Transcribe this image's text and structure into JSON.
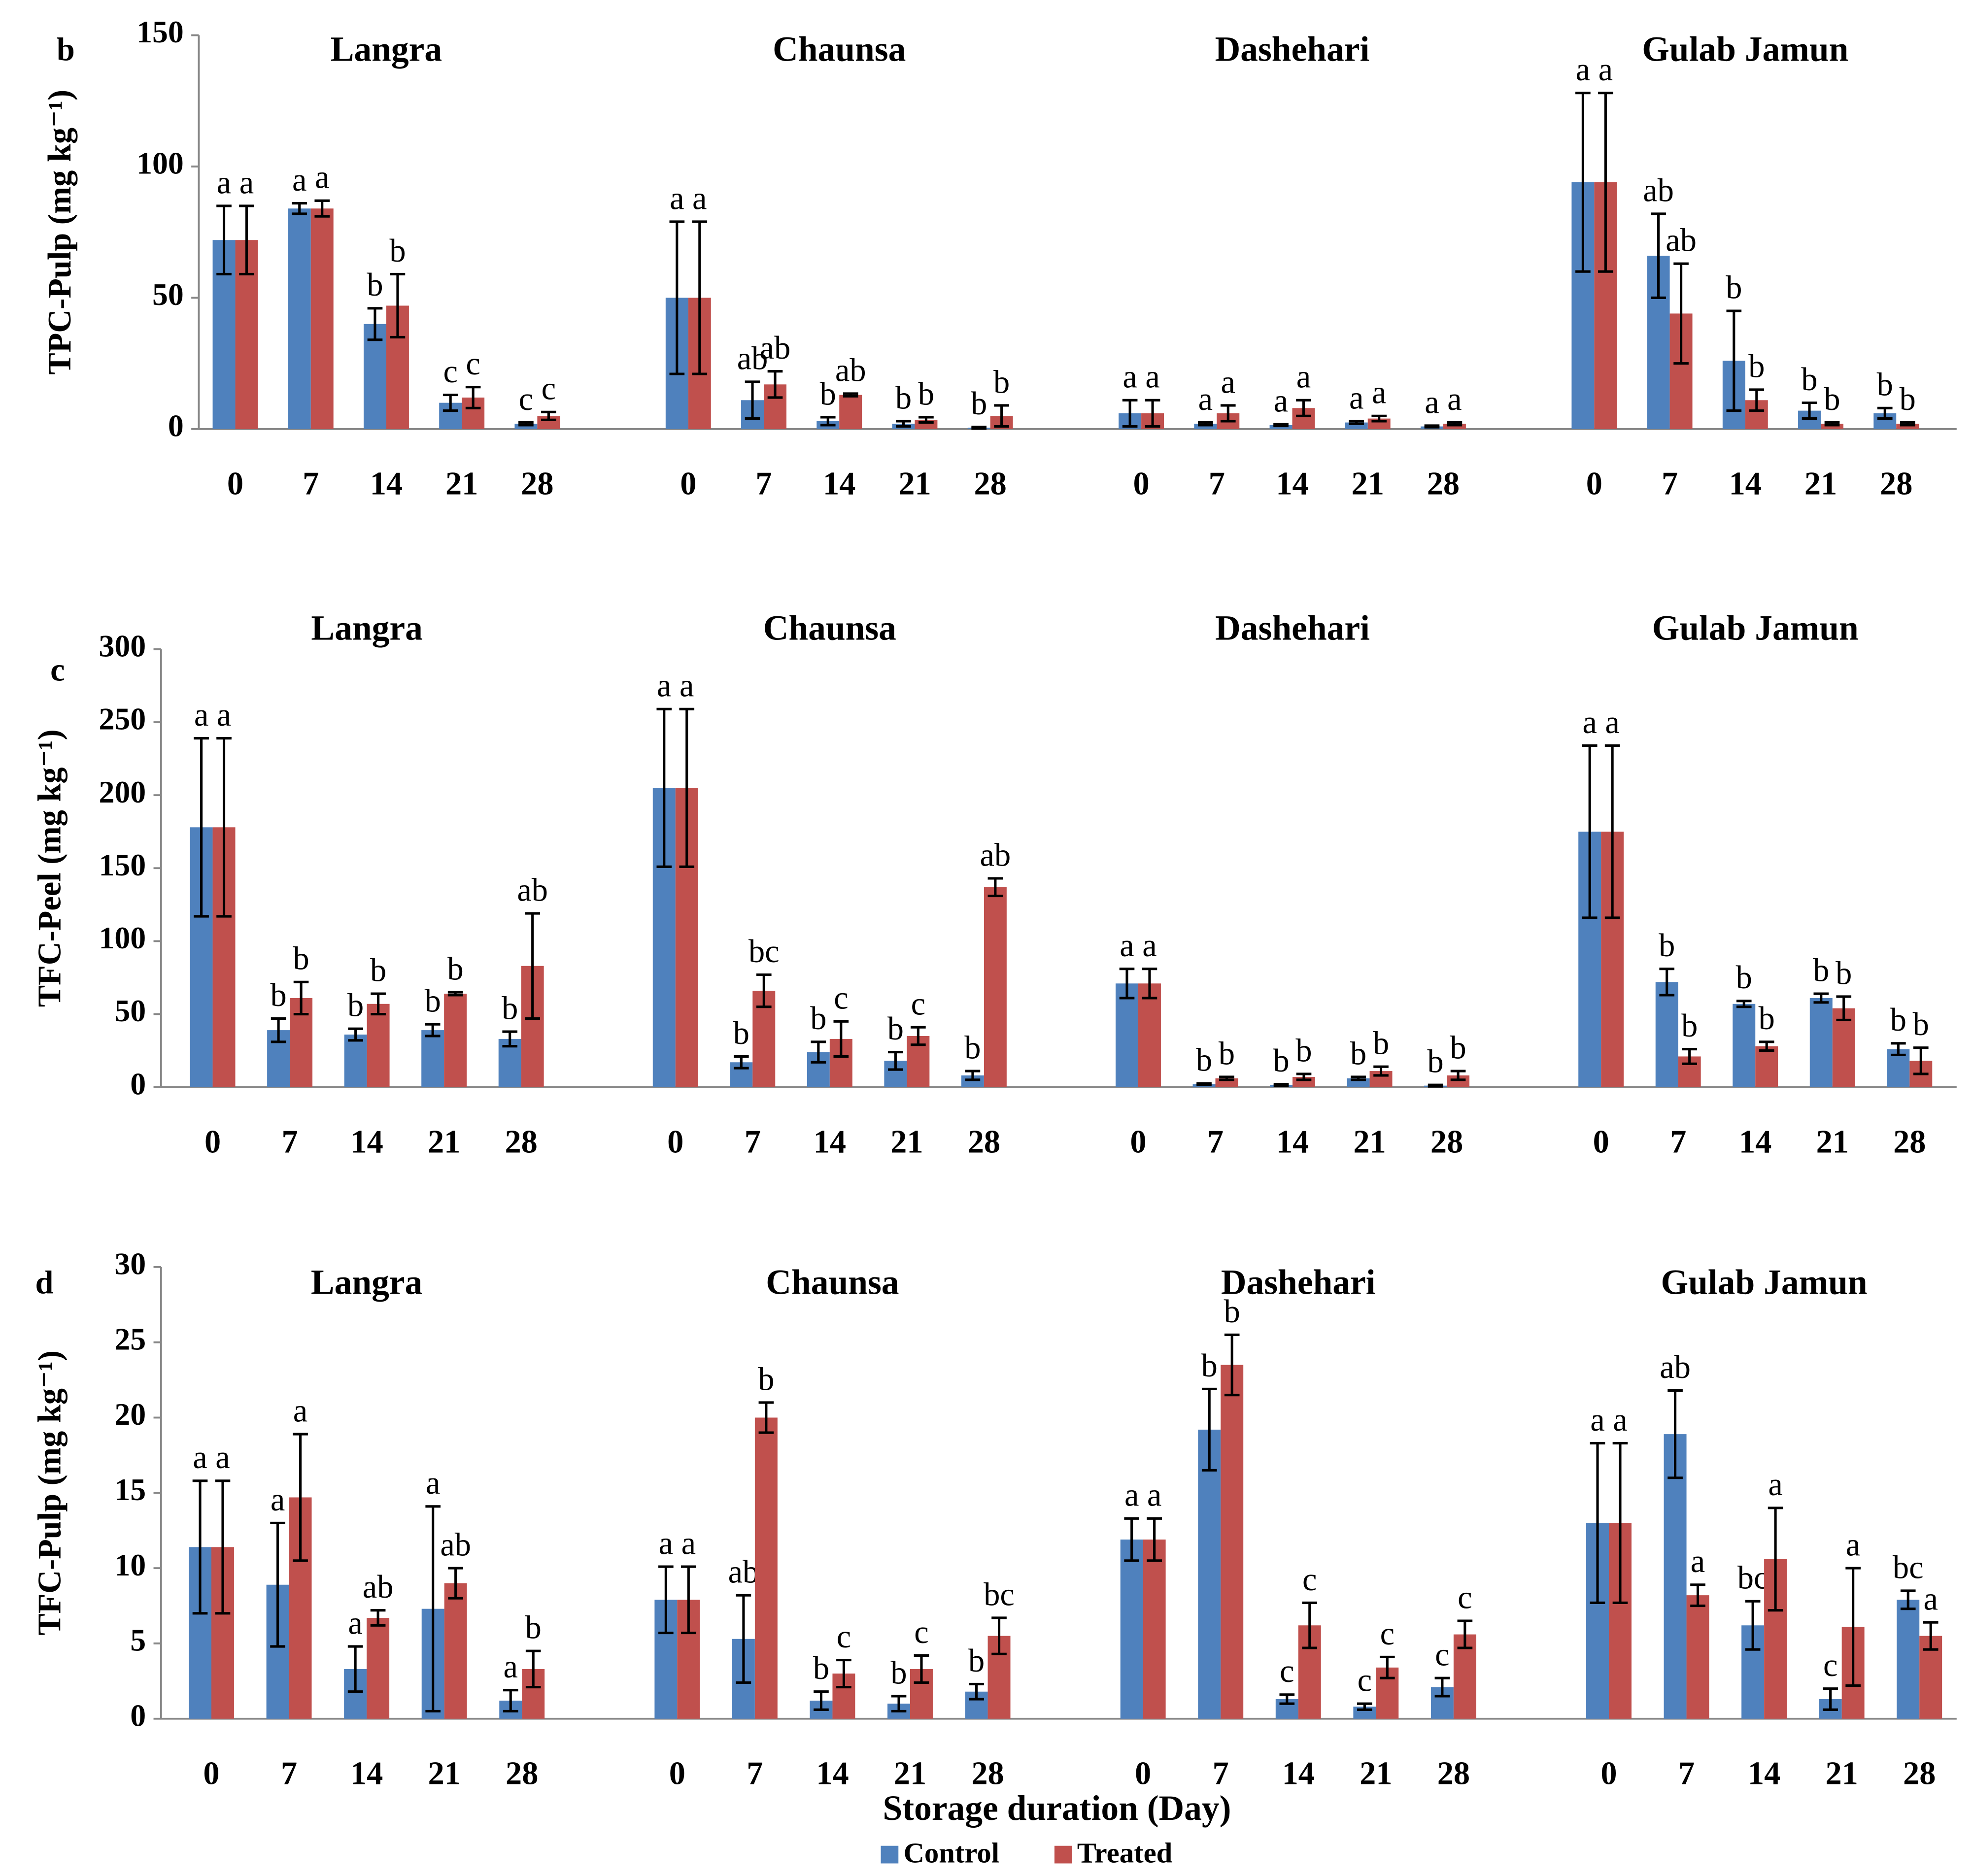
{
  "chart_data": [
    {
      "type": "bar",
      "panel": "b",
      "y_label": "TPC-Pulp (mg kg⁻¹)",
      "groups": [
        "Langra",
        "Chaunsa",
        "Dashehari",
        "Gulab Jamun"
      ],
      "categories": [
        "0",
        "7",
        "14",
        "21",
        "28",
        "0",
        "7",
        "14",
        "21",
        "28",
        "0",
        "7",
        "14",
        "21",
        "28",
        "0",
        "7",
        "14",
        "21",
        "28"
      ],
      "ylim": [
        0,
        150
      ],
      "yticks": [
        0,
        50,
        100,
        150
      ],
      "series": [
        {
          "name": "Control",
          "color": "#4f81bd",
          "values": [
            72,
            84,
            40,
            10,
            2,
            50,
            11,
            3,
            2,
            0.5,
            6,
            2,
            1.5,
            2.5,
            1,
            94,
            66,
            26,
            7,
            6
          ],
          "errors": [
            13,
            2,
            6,
            3,
            0.5,
            29,
            7,
            1.5,
            1,
            0.3,
            5,
            0.5,
            0.3,
            0.5,
            0.3,
            34,
            16,
            19,
            3,
            2
          ],
          "letters": [
            "a",
            "a",
            "b",
            "c",
            "c",
            "a",
            "ab",
            "b",
            "b",
            "b",
            "a",
            "a",
            "a",
            "a",
            "a",
            "a",
            "ab",
            "b",
            "b",
            "b"
          ]
        },
        {
          "name": "Treated",
          "color": "#c0504d",
          "values": [
            72,
            84,
            47,
            12,
            5,
            50,
            17,
            13,
            3.5,
            5,
            6,
            6,
            8,
            4,
            2,
            94,
            44,
            11,
            2,
            2
          ],
          "errors": [
            13,
            3,
            12,
            4,
            1.5,
            29,
            5,
            0.5,
            1,
            4,
            5,
            3,
            3,
            1,
            0.5,
            34,
            19,
            4,
            0.5,
            0.5
          ],
          "letters": [
            "a",
            "a",
            "b",
            "c",
            "c",
            "a",
            "ab",
            "ab",
            "b",
            "b",
            "a",
            "a",
            "a",
            "a",
            "a",
            "a",
            "ab",
            "b",
            "b",
            "b"
          ]
        }
      ]
    },
    {
      "type": "bar",
      "panel": "c",
      "y_label": "TFC-Peel (mg kg⁻¹)",
      "groups": [
        "Langra",
        "Chaunsa",
        "Dashehari",
        "Gulab Jamun"
      ],
      "categories": [
        "0",
        "7",
        "14",
        "21",
        "28",
        "0",
        "7",
        "14",
        "21",
        "28",
        "0",
        "7",
        "14",
        "21",
        "28",
        "0",
        "7",
        "14",
        "21",
        "28"
      ],
      "ylim": [
        0,
        300
      ],
      "yticks": [
        0,
        50,
        100,
        150,
        200,
        250,
        300
      ],
      "series": [
        {
          "name": "Control",
          "color": "#4f81bd",
          "values": [
            178,
            39,
            36,
            39,
            33,
            205,
            17,
            24,
            18,
            8,
            71,
            2,
            1.5,
            6,
            1,
            175,
            72,
            57,
            61,
            26
          ],
          "errors": [
            61,
            8,
            4,
            4,
            5,
            54,
            4,
            7,
            6,
            3,
            10,
            0.5,
            0.5,
            1,
            0.5,
            59,
            9,
            2,
            3,
            4
          ],
          "letters": [
            "a",
            "b",
            "b",
            "b",
            "b",
            "a",
            "b",
            "b",
            "b",
            "b",
            "a",
            "b",
            "b",
            "b",
            "b",
            "a",
            "b",
            "b",
            "b",
            "b"
          ]
        },
        {
          "name": "Treated",
          "color": "#c0504d",
          "values": [
            178,
            61,
            57,
            64,
            83,
            205,
            66,
            33,
            35,
            137,
            71,
            6,
            7,
            11,
            8,
            175,
            21,
            28,
            54,
            18
          ],
          "errors": [
            61,
            11,
            7,
            1,
            36,
            54,
            11,
            12,
            6,
            6,
            10,
            1,
            2,
            3,
            3,
            59,
            5,
            3,
            8,
            9
          ],
          "letters": [
            "a",
            "b",
            "b",
            "b",
            "ab",
            "a",
            "bc",
            "c",
            "c",
            "ab",
            "a",
            "b",
            "b",
            "b",
            "b",
            "a",
            "b",
            "b",
            "b",
            "b"
          ]
        }
      ]
    },
    {
      "type": "bar",
      "panel": "d",
      "y_label": "TFC-Pulp (mg kg⁻¹)",
      "x_label": "Storage duration (Day)",
      "groups": [
        "Langra",
        "Chaunsa",
        "Dashehari",
        "Gulab Jamun"
      ],
      "categories": [
        "0",
        "7",
        "14",
        "21",
        "28",
        "0",
        "7",
        "14",
        "21",
        "28",
        "0",
        "7",
        "14",
        "21",
        "28",
        "0",
        "7",
        "14",
        "21",
        "28"
      ],
      "ylim": [
        0,
        30
      ],
      "yticks": [
        0,
        5,
        10,
        15,
        20,
        25,
        30
      ],
      "series": [
        {
          "name": "Control",
          "color": "#4f81bd",
          "values": [
            11.4,
            8.9,
            3.3,
            7.3,
            1.2,
            7.9,
            5.3,
            1.2,
            1,
            1.8,
            11.9,
            19.2,
            1.3,
            0.8,
            2.1,
            13,
            18.9,
            6.2,
            1.3,
            7.9
          ],
          "errors": [
            4.4,
            4.1,
            1.5,
            6.8,
            0.7,
            2.2,
            2.9,
            0.6,
            0.5,
            0.5,
            1.4,
            2.7,
            0.3,
            0.2,
            0.6,
            5.3,
            2.9,
            1.6,
            0.7,
            0.6
          ],
          "letters": [
            "a",
            "a",
            "a",
            "a",
            "a",
            "a",
            "ab",
            "b",
            "b",
            "b",
            "a",
            "b",
            "c",
            "c",
            "c",
            "a",
            "ab",
            "bc",
            "c",
            "bc"
          ]
        },
        {
          "name": "Treated",
          "color": "#c0504d",
          "values": [
            11.4,
            14.7,
            6.7,
            9,
            3.3,
            7.9,
            20,
            3,
            3.3,
            5.5,
            11.9,
            23.5,
            6.2,
            3.4,
            5.6,
            13,
            8.2,
            10.6,
            6.1,
            5.5
          ],
          "errors": [
            4.4,
            4.2,
            0.5,
            1,
            1.2,
            2.2,
            1,
            0.9,
            0.9,
            1.2,
            1.4,
            2,
            1.5,
            0.7,
            0.9,
            5.3,
            0.7,
            3.4,
            3.9,
            0.9
          ],
          "letters": [
            "a",
            "a",
            "ab",
            "ab",
            "b",
            "a",
            "b",
            "c",
            "c",
            "bc",
            "a",
            "b",
            "c",
            "c",
            "c",
            "a",
            "a",
            "a",
            "a",
            "a"
          ]
        }
      ]
    }
  ]
}
